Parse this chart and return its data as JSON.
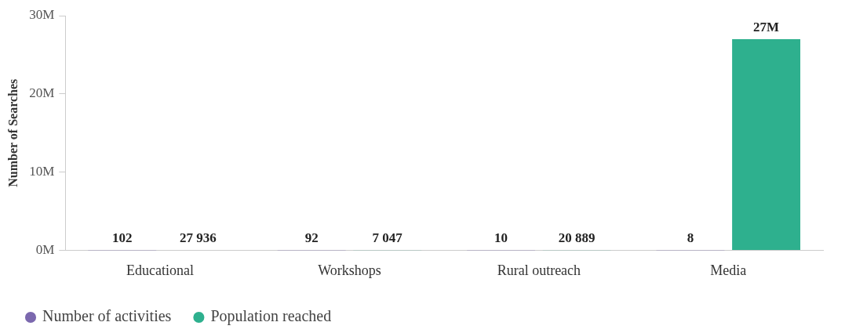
{
  "chart_data": {
    "type": "bar",
    "ylabel": "Number of Searches",
    "categories": [
      "Educational",
      "Workshops",
      "Rural outreach",
      "Media"
    ],
    "series": [
      {
        "name": "Number of activities",
        "color": "#7b68ae",
        "values": [
          102,
          92,
          10,
          8
        ],
        "value_labels": [
          "102",
          "92",
          "10",
          "8"
        ]
      },
      {
        "name": "Population reached",
        "color": "#2eb08e",
        "values": [
          27936,
          7047,
          20889,
          27000000
        ],
        "value_labels": [
          "27 936",
          "7 047",
          "20 889",
          "27M"
        ]
      }
    ],
    "ylim": [
      0,
      30000000
    ],
    "yticks": [
      {
        "value": 0,
        "label": "0M"
      },
      {
        "value": 10000000,
        "label": "10M"
      },
      {
        "value": 20000000,
        "label": "20M"
      },
      {
        "value": 30000000,
        "label": "30M"
      }
    ],
    "grid": false,
    "legend": "bottom left"
  }
}
